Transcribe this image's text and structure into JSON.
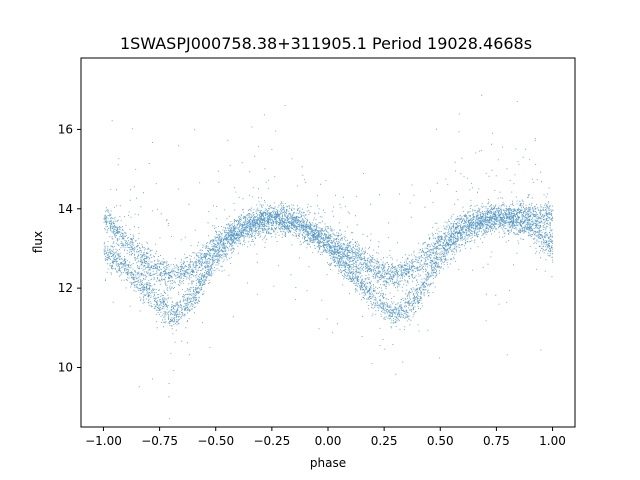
{
  "chart_data": {
    "type": "scatter",
    "title": "1SWASPJ000758.38+311905.1 Period 19028.4668s",
    "xlabel": "phase",
    "ylabel": "flux",
    "xlim": [
      -1.1,
      1.1
    ],
    "ylim": [
      8.5,
      17.8
    ],
    "x_ticks": [
      -1.0,
      -0.75,
      -0.5,
      -0.25,
      0.0,
      0.25,
      0.5,
      0.75,
      1.0
    ],
    "x_tick_labels": [
      "−1.00",
      "−0.75",
      "−0.50",
      "−0.25",
      "0.00",
      "0.25",
      "0.50",
      "0.75",
      "1.00"
    ],
    "y_ticks": [
      10,
      12,
      14,
      16
    ],
    "y_tick_labels": [
      "10",
      "12",
      "14",
      "16"
    ],
    "grid": false,
    "marker_color": "#1f77b4",
    "series": [
      {
        "x_range": [
          -1.0,
          1.0
        ],
        "band_upper": {
          "phase": [
            -1.0,
            -0.9,
            -0.8,
            -0.7,
            -0.6,
            -0.5,
            -0.4,
            -0.3,
            -0.2,
            -0.1,
            0.0,
            0.1,
            0.2,
            0.3,
            0.4,
            0.5,
            0.6,
            0.7,
            0.8,
            0.9,
            1.0
          ],
          "flux": [
            13.8,
            13.2,
            12.6,
            12.3,
            12.5,
            13.1,
            13.5,
            13.7,
            13.7,
            13.5,
            13.2,
            12.9,
            12.5,
            12.3,
            12.6,
            13.2,
            13.6,
            13.8,
            13.8,
            13.9,
            13.8
          ]
        },
        "band_lower": {
          "phase": [
            -1.0,
            -0.9,
            -0.8,
            -0.7,
            -0.6,
            -0.5,
            -0.4,
            -0.3,
            -0.2,
            -0.1,
            0.0,
            0.1,
            0.2,
            0.3,
            0.4,
            0.5,
            0.6,
            0.7,
            0.8,
            0.9,
            1.0
          ],
          "flux": [
            12.9,
            12.5,
            11.9,
            11.3,
            11.8,
            12.8,
            13.4,
            13.7,
            13.8,
            13.6,
            13.0,
            12.4,
            11.8,
            11.3,
            11.8,
            12.8,
            13.4,
            13.7,
            13.8,
            13.5,
            13.0
          ]
        },
        "scatter_sigma": 0.18,
        "n_points": 9000
      }
    ]
  }
}
